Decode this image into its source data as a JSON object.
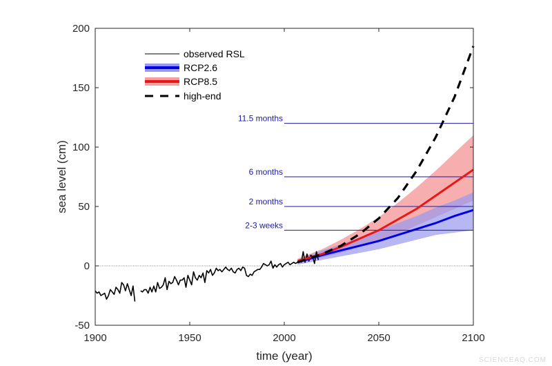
{
  "chart_data": {
    "type": "line",
    "xlabel": "time (year)",
    "ylabel": "sea level (cm)",
    "xlim": [
      1900,
      2100
    ],
    "ylim": [
      -50,
      200
    ],
    "xticks": [
      1900,
      1950,
      2000,
      2050,
      2100
    ],
    "yticks": [
      -50,
      0,
      50,
      100,
      150,
      200
    ],
    "grid": false,
    "legend_position": "top-left",
    "zero_line": {
      "value": 0,
      "style": "dotted"
    },
    "colors": {
      "observed": "#000000",
      "rcp26": "#0000e0",
      "rcp26_band": "#9999f0",
      "rcp85": "#e81818",
      "rcp85_band": "#f5a0a0",
      "high_end": "#000000",
      "threshold": "#1a1aa6"
    },
    "legend": [
      "observed RSL",
      "RCP2.6",
      "RCP8.5",
      "high-end"
    ],
    "thresholds": [
      {
        "label": "11.5 months",
        "value": 120,
        "from": 2000,
        "to": 2100
      },
      {
        "label": "6 months",
        "value": 75,
        "from": 2000,
        "to": 2100
      },
      {
        "label": "2 months",
        "value": 50,
        "from": 2000,
        "to": 2100
      },
      {
        "label": "2-3 weeks",
        "value": 30,
        "from": 2000,
        "to": 2100
      }
    ],
    "series": [
      {
        "name": "observed RSL",
        "style": "solid-thin",
        "x": [
          1900,
          1901,
          1902,
          1903,
          1904,
          1905,
          1906,
          1907,
          1908,
          1909,
          1910,
          1911,
          1912,
          1913,
          1914,
          1915,
          1916,
          1917,
          1918,
          1919,
          1920,
          1921,
          1922,
          1923,
          1924,
          1925,
          1926,
          1927,
          1928,
          1929,
          1930,
          1931,
          1932,
          1933,
          1934,
          1935,
          1936,
          1937,
          1938,
          1939,
          1940,
          1941,
          1942,
          1943,
          1944,
          1945,
          1946,
          1947,
          1948,
          1949,
          1950,
          1951,
          1952,
          1953,
          1954,
          1955,
          1956,
          1957,
          1958,
          1959,
          1960,
          1961,
          1962,
          1963,
          1964,
          1965,
          1966,
          1967,
          1968,
          1969,
          1970,
          1971,
          1972,
          1973,
          1974,
          1975,
          1976,
          1977,
          1978,
          1979,
          1980,
          1981,
          1982,
          1983,
          1984,
          1985,
          1986,
          1987,
          1988,
          1989,
          1990,
          1991,
          1992,
          1993,
          1994,
          1995,
          1996,
          1997,
          1998,
          1999,
          2000,
          2001,
          2002,
          2003,
          2004,
          2005,
          2006,
          2007,
          2008,
          2009,
          2010,
          2011,
          2012,
          2013,
          2014,
          2015,
          2016,
          2017,
          2018
        ],
        "y": [
          -21,
          -23,
          -22,
          -25,
          -24,
          -23,
          -28,
          -25,
          -20,
          -22,
          -24,
          -18,
          -20,
          -23,
          -14,
          -16,
          -21,
          -15,
          -20,
          -25,
          -17,
          -30,
          null,
          null,
          -21,
          -22,
          -20,
          -20,
          -23,
          -18,
          -22,
          -17,
          -22,
          -14,
          -19,
          -18,
          -16,
          -10,
          -20,
          -13,
          -15,
          -14,
          -9,
          -12,
          -16,
          -12,
          -12,
          -10,
          -18,
          -8,
          -12,
          -16,
          -5,
          -10,
          -12,
          -8,
          -10,
          -6,
          -14,
          -4,
          -6,
          -3,
          -8,
          -6,
          -2,
          -4,
          -3,
          -5,
          -3,
          -1,
          -3,
          -4,
          -2,
          -5,
          -6,
          -3,
          -2,
          -4,
          -1,
          -2,
          -8,
          -9,
          -7,
          -8,
          -5,
          -4,
          -3,
          -3,
          -1,
          2,
          1,
          0,
          1,
          4,
          -2,
          1,
          -1,
          1,
          2,
          -1,
          1,
          2,
          3,
          1,
          2,
          3,
          2,
          3,
          5,
          3,
          12,
          3,
          10,
          4,
          9,
          8,
          2,
          12,
          5
        ]
      },
      {
        "name": "RCP2.6",
        "style": "solid-thick",
        "x": [
          2007,
          2020,
          2030,
          2040,
          2050,
          2060,
          2070,
          2080,
          2090,
          2100
        ],
        "y": [
          3,
          9,
          13,
          17,
          21,
          26,
          31,
          36,
          42,
          47
        ],
        "lower": [
          1,
          5,
          8,
          11,
          14,
          18,
          22,
          26,
          28,
          30
        ],
        "upper": [
          5,
          13,
          18,
          24,
          30,
          36,
          42,
          49,
          55,
          62
        ]
      },
      {
        "name": "RCP8.5",
        "style": "solid-thick",
        "x": [
          2007,
          2020,
          2030,
          2040,
          2050,
          2060,
          2070,
          2080,
          2090,
          2100
        ],
        "y": [
          4,
          10,
          16,
          23,
          30,
          39,
          48,
          59,
          70,
          81
        ],
        "lower": [
          2,
          7,
          11,
          16,
          21,
          27,
          34,
          41,
          48,
          55
        ],
        "upper": [
          6,
          14,
          22,
          31,
          41,
          53,
          66,
          80,
          95,
          110
        ]
      },
      {
        "name": "high-end",
        "style": "dashed",
        "x": [
          2007,
          2020,
          2030,
          2040,
          2050,
          2060,
          2070,
          2080,
          2090,
          2100
        ],
        "y": [
          3,
          10,
          17,
          27,
          40,
          57,
          80,
          108,
          142,
          185
        ]
      }
    ]
  },
  "watermark": "SCIENCEAQ.COM"
}
